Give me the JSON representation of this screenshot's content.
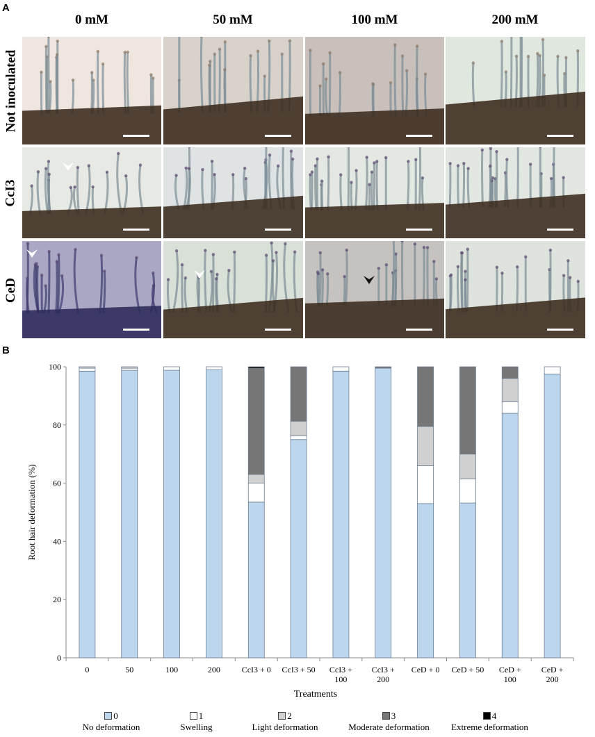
{
  "panel_a": {
    "letter": "A",
    "columns": [
      "0 mM",
      "50 mM",
      "100 mM",
      "200 mM"
    ],
    "rows": [
      "Not inoculated",
      "CcI3",
      "CeD"
    ]
  },
  "panel_b": {
    "letter": "B"
  },
  "colors": {
    "no_deformation": "#bcd6ee",
    "swelling": "#ffffff",
    "light_deformation": "#d0d0d0",
    "moderate_deformation": "#767676",
    "extreme_deformation": "#000000"
  },
  "chart_data": {
    "type": "bar",
    "stacked": true,
    "ylabel": "Root hair deformation (%)",
    "xlabel": "Treatments",
    "ylim": [
      0,
      100
    ],
    "yticks": [
      0,
      20,
      40,
      60,
      80,
      100
    ],
    "categories": [
      [
        "0"
      ],
      [
        "50"
      ],
      [
        "100"
      ],
      [
        "200"
      ],
      [
        "CcI3 + 0"
      ],
      [
        "CcI3 + 50"
      ],
      [
        "CcI3 +",
        "100"
      ],
      [
        "CcI3 +",
        "200"
      ],
      [
        "CeD + 0"
      ],
      [
        "CeD + 50"
      ],
      [
        "CeD +",
        "100"
      ],
      [
        "CeD +",
        "200"
      ]
    ],
    "series": [
      {
        "name": "0",
        "label": "No deformation",
        "color": "#bcd6ee",
        "values": [
          98.5,
          98.8,
          98.8,
          99.0,
          53.5,
          75.0,
          98.5,
          99.5,
          53.0,
          53.2,
          84.0,
          97.5
        ]
      },
      {
        "name": "1",
        "label": "Swelling",
        "color": "#ffffff",
        "values": [
          1.0,
          0.7,
          1.2,
          1.0,
          6.5,
          1.3,
          1.5,
          0.0,
          13.0,
          8.3,
          4.0,
          2.5
        ]
      },
      {
        "name": "2",
        "label": "Light deformation",
        "color": "#d0d0d0",
        "values": [
          0.5,
          0.5,
          0.0,
          0.0,
          3.0,
          5.0,
          0.0,
          0.0,
          13.5,
          8.5,
          8.0,
          0.0
        ]
      },
      {
        "name": "3",
        "label": "Moderate deformation",
        "color": "#767676",
        "values": [
          0.0,
          0.0,
          0.0,
          0.0,
          36.5,
          18.7,
          0.0,
          0.5,
          20.5,
          30.0,
          4.0,
          0.0
        ]
      },
      {
        "name": "4",
        "label": "Extreme deformation",
        "color": "#000000",
        "values": [
          0.0,
          0.0,
          0.0,
          0.0,
          0.5,
          0.0,
          0.0,
          0.0,
          0.0,
          0.0,
          0.0,
          0.0
        ]
      }
    ],
    "grid": false,
    "legend": "bottom"
  }
}
